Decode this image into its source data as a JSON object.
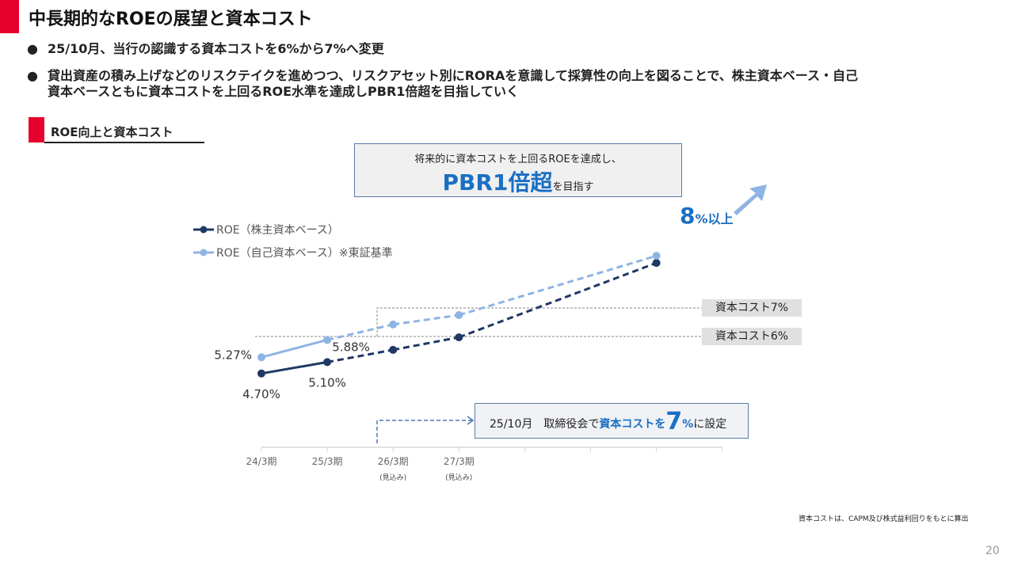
{
  "header": {
    "title": "中長期的なROEの展望と資本コスト"
  },
  "bullets": [
    "25/10月、当行の認識する資本コストを6%から7%へ変更",
    "貸出資産の積み上げなどのリスクテイクを進めつつ、リスクアセット別にRORAを意識して採算性の向上を図ることで、株主資本ベース・自己",
    "資本ベースともに資本コストを上回るROE水準を達成しPBR1倍超を目指していく"
  ],
  "bullet_marker": "●",
  "section": {
    "title": "ROE向上と資本コスト"
  },
  "callout": {
    "line1": "将来的に資本コストを上回るROEを達成し、",
    "big": "PBR1倍超",
    "suffix": "を目指す"
  },
  "target": {
    "number": "8",
    "suffix": "%以上"
  },
  "note": {
    "prefix": "25/10月　取締役会で",
    "highlight": "資本コストを",
    "big": "7",
    "pct": "%",
    "suffix": "に設定"
  },
  "footnote": "資本コストは、CAPM及び株式益利回りをもとに算出",
  "page_number": "20",
  "colors": {
    "accent_red": "#e5002d",
    "dark_series": "#1f3864",
    "light_series": "#8eb4e3",
    "highlight_blue": "#1a6fc2"
  },
  "chart_data": {
    "type": "line",
    "categories": [
      "24/3期",
      "25/3期",
      "26/3期",
      "27/3期",
      "",
      "",
      "",
      ""
    ],
    "sub_labels": [
      "",
      "",
      "(見込み)",
      "(見込み)",
      "",
      "",
      "",
      ""
    ],
    "series": [
      {
        "name": "ROE（株主資本ベース）",
        "values": [
          4.7,
          5.1,
          5.53,
          5.97,
          null,
          null,
          8.58,
          null
        ],
        "labels": [
          "4.70%",
          "5.10%",
          "",
          "",
          "",
          "",
          "",
          ""
        ],
        "actual_count": 2
      },
      {
        "name": "ROE（自己資本ベース）※東証基準",
        "values": [
          5.27,
          5.88,
          6.42,
          6.75,
          null,
          null,
          8.83,
          null
        ],
        "labels": [
          "5.27%",
          "5.88%",
          "",
          "",
          "",
          "",
          "",
          ""
        ],
        "actual_count": 2
      }
    ],
    "reference_lines": [
      {
        "label": "資本コスト7%",
        "value": 7
      },
      {
        "label": "資本コスト6%",
        "value": 6
      }
    ],
    "legend": "top-left",
    "grid": false,
    "ylabel": "",
    "xlabel": ""
  }
}
